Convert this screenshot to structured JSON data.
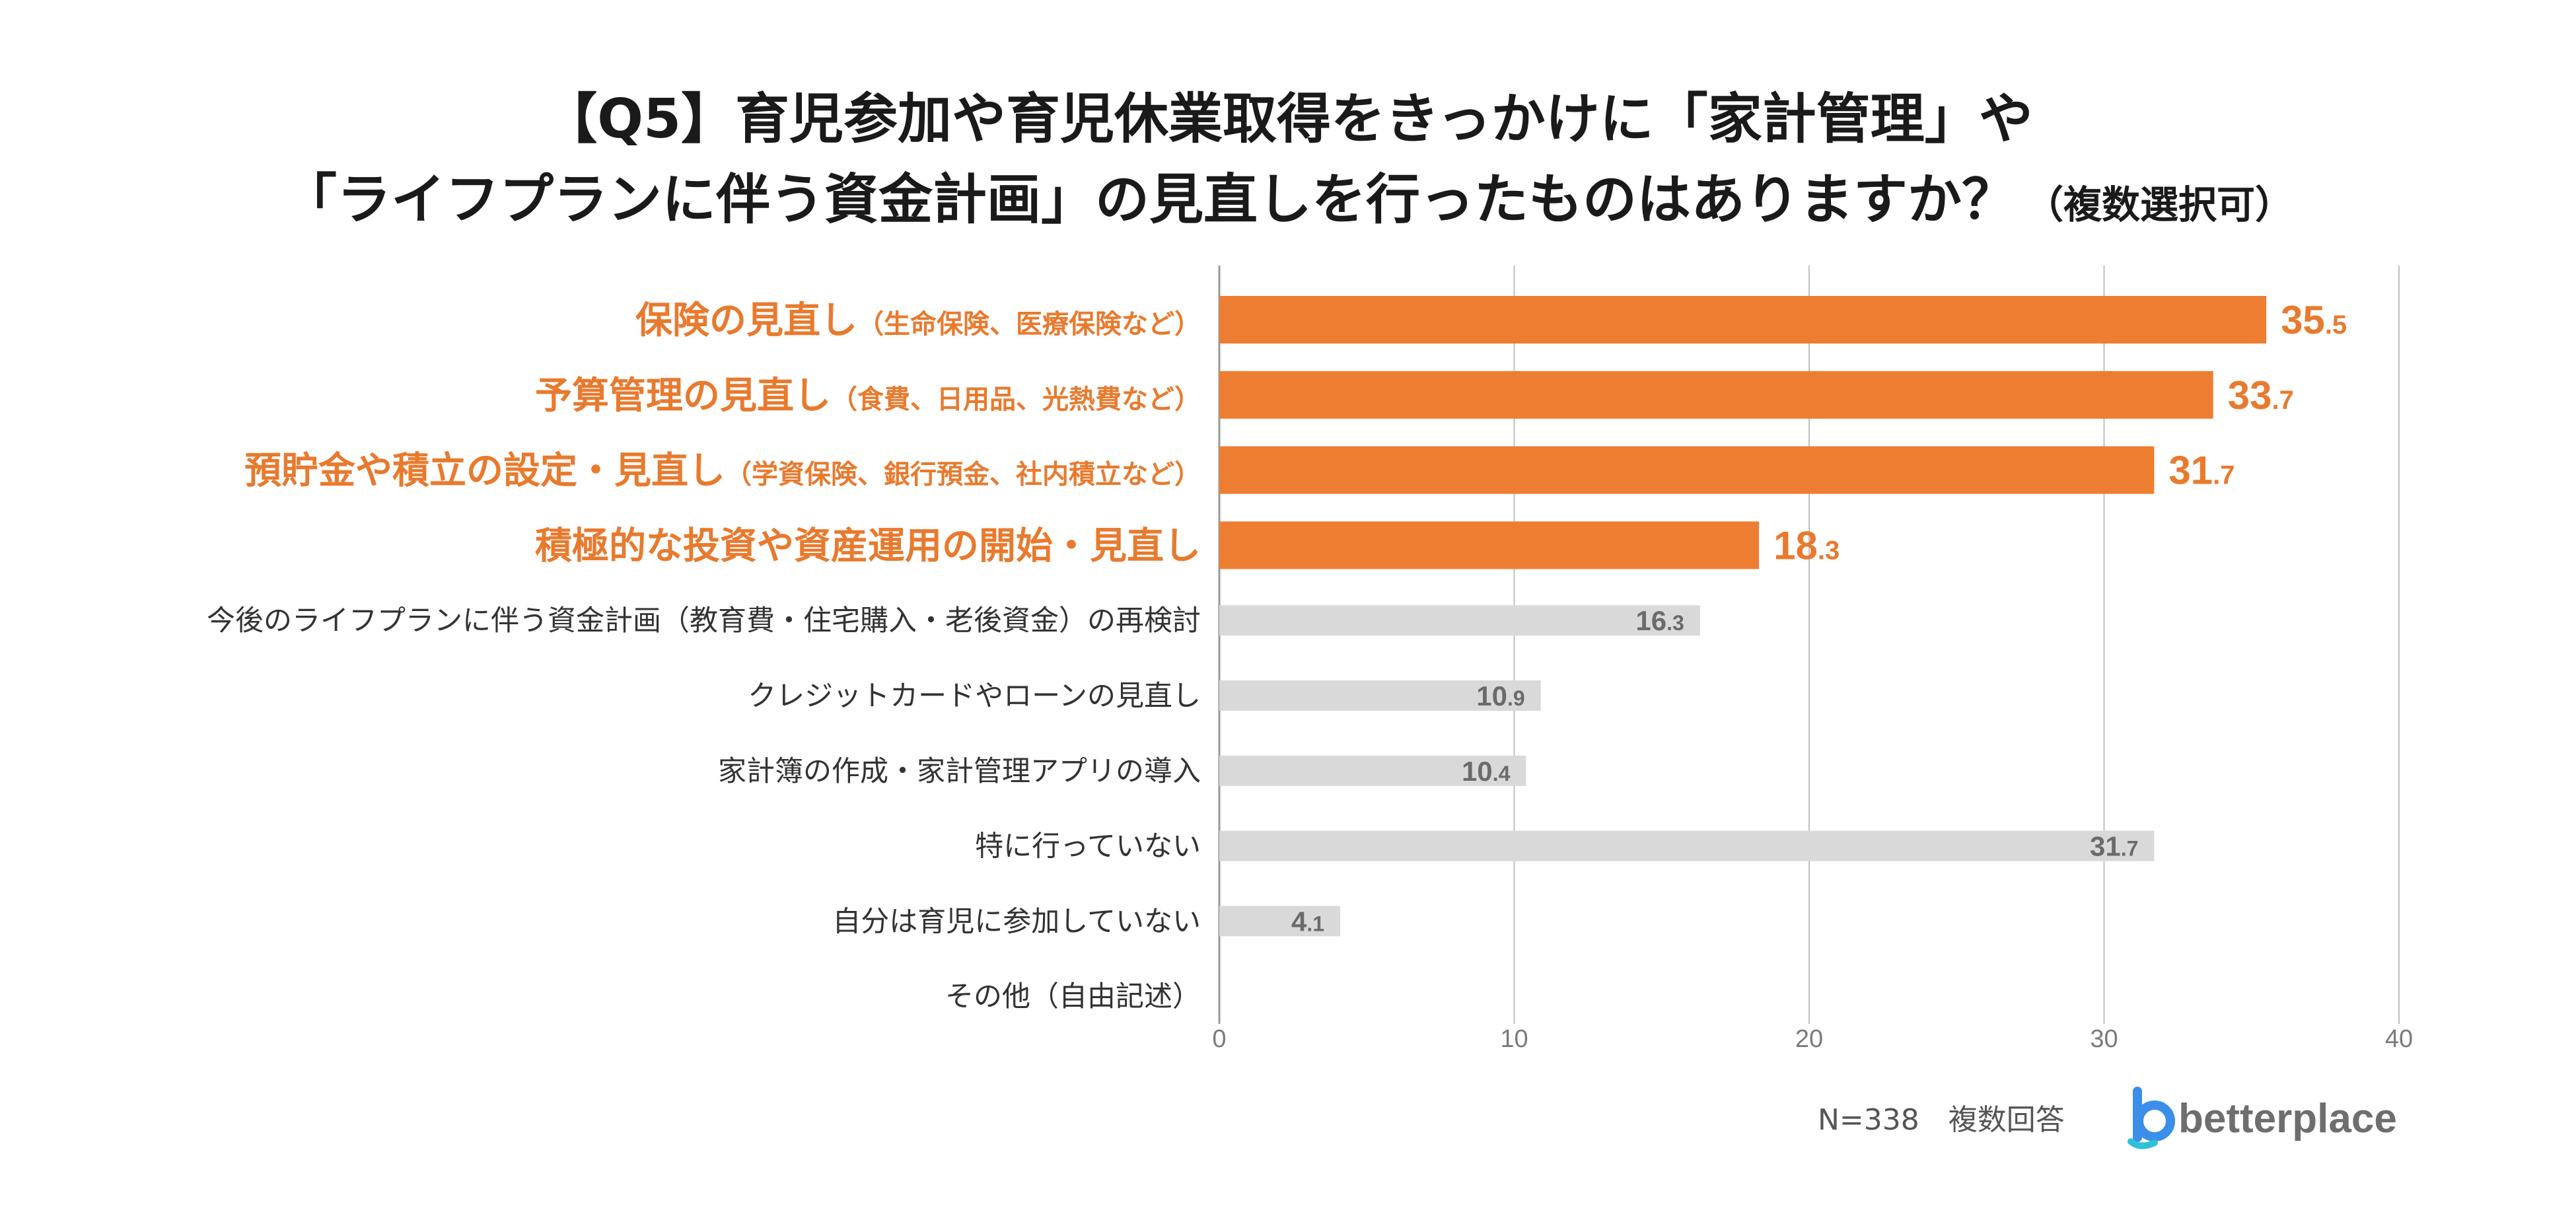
{
  "chart_data": {
    "type": "bar",
    "orientation": "horizontal",
    "title_line1": "【Q5】育児参加や育児休業取得をきっかけに「家計管理」や",
    "title_line2": "「ライフプランに伴う資金計画」の見直しを行ったものはありますか？",
    "title_suffix": "（複数選択可）",
    "categories": [
      {
        "label": "保険の見直し",
        "sub": "（生命保険、医療保険など）",
        "highlight": true
      },
      {
        "label": "予算管理の見直し",
        "sub": "（食費、日用品、光熱費など）",
        "highlight": true
      },
      {
        "label": "預貯金や積立の設定・見直し",
        "sub": "（学資保険、銀行預金、社内積立など）",
        "highlight": true
      },
      {
        "label": "積極的な投資や資産運用の開始・見直し",
        "sub": "",
        "highlight": true
      },
      {
        "label": "今後のライフプランに伴う資金計画（教育費・住宅購入・老後資金）の再検討",
        "sub": "",
        "highlight": false
      },
      {
        "label": "クレジットカードやローンの見直し",
        "sub": "",
        "highlight": false
      },
      {
        "label": "家計簿の作成・家計管理アプリの導入",
        "sub": "",
        "highlight": false
      },
      {
        "label": "特に行っていない",
        "sub": "",
        "highlight": false
      },
      {
        "label": "自分は育児に参加していない",
        "sub": "",
        "highlight": false
      },
      {
        "label": "その他（自由記述）",
        "sub": "",
        "highlight": false
      }
    ],
    "values": [
      35.5,
      33.7,
      31.7,
      18.3,
      16.3,
      10.9,
      10.4,
      31.7,
      4.1,
      null
    ],
    "value_labels": [
      {
        "int": "35",
        "dec": ".5"
      },
      {
        "int": "33",
        "dec": ".7"
      },
      {
        "int": "31",
        "dec": ".7"
      },
      {
        "int": "18",
        "dec": ".3"
      },
      {
        "int": "16",
        "dec": ".3"
      },
      {
        "int": "10",
        "dec": ".9"
      },
      {
        "int": "10",
        "dec": ".4"
      },
      {
        "int": "31",
        "dec": ".7"
      },
      {
        "int": "4",
        "dec": ".1"
      },
      null
    ],
    "xlim": [
      0,
      40
    ],
    "xticks": [
      "0",
      "10",
      "20",
      "30",
      "40"
    ],
    "grid": true,
    "colors": {
      "highlight": "#ed7d31",
      "normal": "#d9d9d9",
      "grid": "#bfbfbf"
    }
  },
  "footer": {
    "note": "N=338　複数回答",
    "logo_text": "betterplace"
  }
}
